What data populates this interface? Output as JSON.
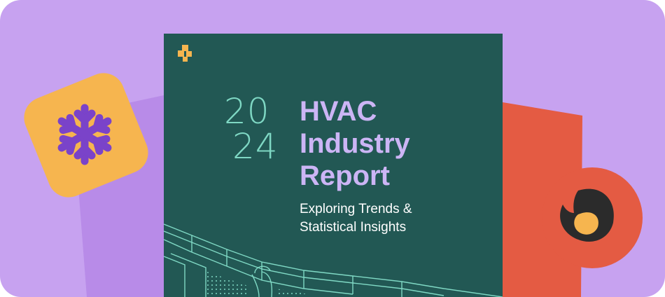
{
  "cover": {
    "year_line_1": "20",
    "year_line_2": "24",
    "title_line_1": "HVAC",
    "title_line_2": "Industry",
    "title_line_3": "Report",
    "subtitle_line_1": "Exploring Trends &",
    "subtitle_line_2": "Statistical Insights"
  },
  "icons": {
    "cold": "snowflake-icon",
    "heat": "flame-icon",
    "brand": "brand-logo-icon"
  },
  "colors": {
    "background": "#c7a2f0",
    "cover": "#225854",
    "year": "#7fd8c4",
    "title": "#ccb5f5",
    "snow_badge": "#f6b54f",
    "snowflake": "#7a43c9",
    "flame_shape": "#e45b43",
    "flame": "#2b2b2b",
    "flame_core": "#f6b54f"
  }
}
